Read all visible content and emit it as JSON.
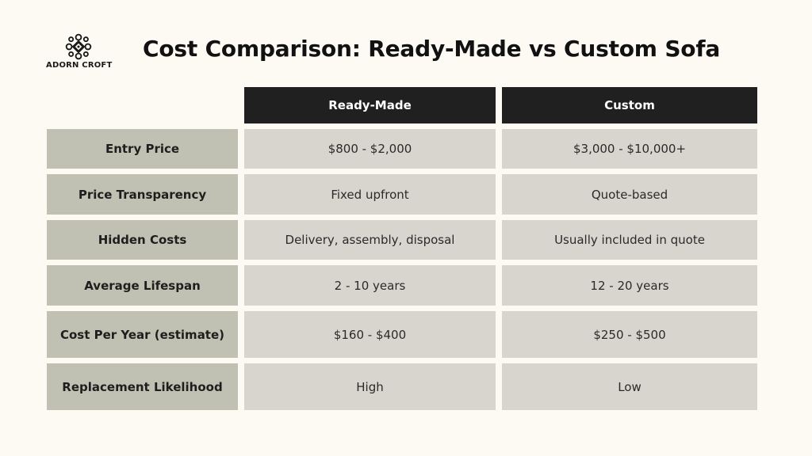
{
  "brand": {
    "name": "ADORN CROFT",
    "logo_icon": "ornamental-knot-icon"
  },
  "title": "Cost Comparison: Ready-Made vs Custom Sofa",
  "table": {
    "columns": [
      "Ready-Made",
      "Custom"
    ],
    "rows": [
      {
        "label": "Entry Price",
        "values": [
          "$800 - $2,000",
          "$3,000 - $10,000+"
        ]
      },
      {
        "label": "Price Transparency",
        "values": [
          "Fixed upfront",
          "Quote-based"
        ]
      },
      {
        "label": "Hidden Costs",
        "values": [
          "Delivery, assembly, disposal",
          "Usually included in quote"
        ]
      },
      {
        "label": "Average Lifespan",
        "values": [
          "2 - 10 years",
          "12 - 20 years"
        ]
      },
      {
        "label": "Cost Per Year (estimate)",
        "values": [
          "$160 - $400",
          "$250 - $500"
        ]
      },
      {
        "label": "Replacement Likelihood",
        "values": [
          "High",
          "Low"
        ]
      }
    ]
  },
  "colors": {
    "background": "#fcfaf3",
    "header": "#202020",
    "row_label": "#c0c1b2",
    "value_cell": "#d8d5ce"
  }
}
